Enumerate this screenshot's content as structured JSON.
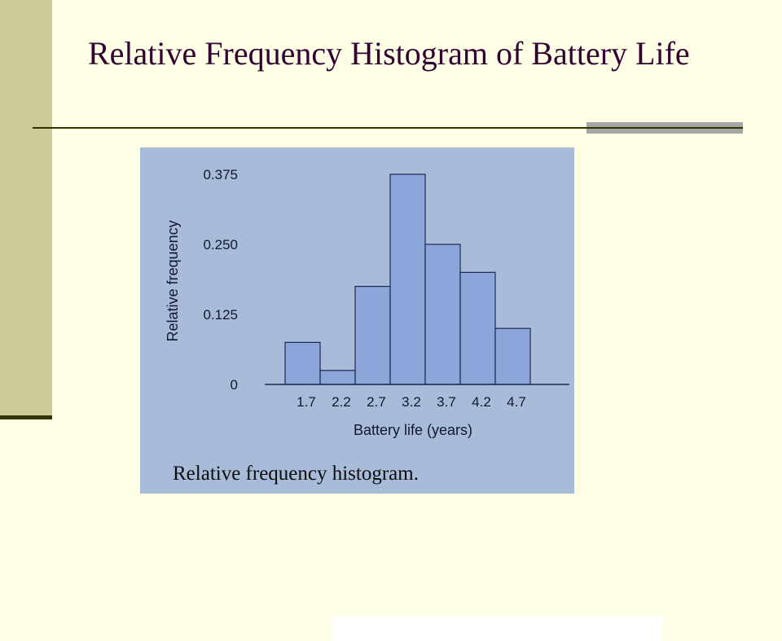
{
  "slide": {
    "title": "Relative Frequency Histogram of Battery Life"
  },
  "colors": {
    "background": "#FFFFE5",
    "accent_bar": "#CCCC99",
    "title": "#330033",
    "photo_background": "#A8BBD8",
    "bar_fill": "#8CA6DA"
  },
  "chart_data": {
    "type": "bar",
    "categories": [
      "1.7",
      "2.2",
      "2.7",
      "3.2",
      "3.7",
      "4.2",
      "4.7"
    ],
    "values": [
      0.075,
      0.025,
      0.175,
      0.375,
      0.25,
      0.2,
      0.1
    ],
    "yticks": [
      "0",
      "0.125",
      "0.250",
      "0.375"
    ],
    "ytick_values": [
      0,
      0.125,
      0.25,
      0.375
    ],
    "xlabel": "Battery life (years)",
    "ylabel": "Relative frequency",
    "ylim": [
      0,
      0.375
    ],
    "caption": "Relative frequency histogram."
  }
}
